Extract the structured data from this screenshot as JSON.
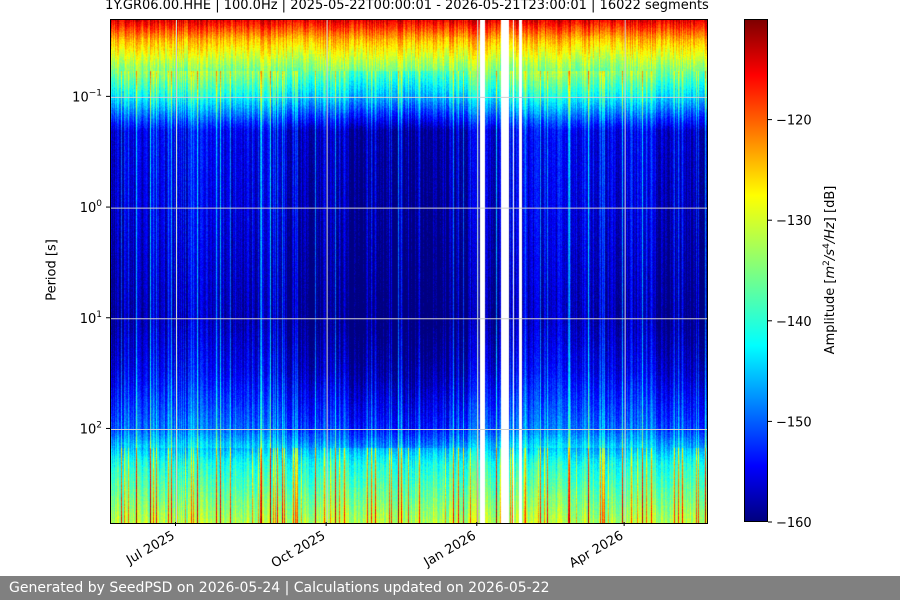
{
  "chart_data": {
    "type": "heatmap",
    "title": "1Y.GR06.00.HHE | 100.0Hz | 2025-05-22T00:00:01 - 2026-05-21T23:00:01 | 16022 segments",
    "ylabel": "Period [s]",
    "yscale": "log",
    "yaxis_inverted": true,
    "ylim": [
      0.02,
      700
    ],
    "y_ticks": [
      {
        "value": 0.1,
        "base": "10",
        "exp": "−1"
      },
      {
        "value": 1,
        "base": "10",
        "exp": "0"
      },
      {
        "value": 10,
        "base": "10",
        "exp": "1"
      },
      {
        "value": 100,
        "base": "10",
        "exp": "2"
      }
    ],
    "xlim": [
      "2025-05-22",
      "2026-05-21"
    ],
    "x_ticks": [
      {
        "date": "2025-07-01",
        "label": "Jul 2025"
      },
      {
        "date": "2025-10-01",
        "label": "Oct 2025"
      },
      {
        "date": "2026-01-01",
        "label": "Jan 2026"
      },
      {
        "date": "2026-04-01",
        "label": "Apr 2026"
      }
    ],
    "grid": true,
    "data_gaps": [
      [
        "2026-01-02",
        "2026-01-05"
      ],
      [
        "2026-01-15",
        "2026-01-20"
      ],
      [
        "2026-01-22",
        "2026-01-23"
      ],
      [
        "2026-01-26",
        "2026-01-28"
      ]
    ],
    "amplitude_profile_db": [
      {
        "period": 0.02,
        "amp": -115
      },
      {
        "period": 0.03,
        "amp": -125
      },
      {
        "period": 0.05,
        "amp": -133
      },
      {
        "period": 0.1,
        "amp": -143
      },
      {
        "period": 0.2,
        "amp": -156
      },
      {
        "period": 1,
        "amp": -157
      },
      {
        "period": 10,
        "amp": -159
      },
      {
        "period": 30,
        "amp": -156
      },
      {
        "period": 100,
        "amp": -150
      },
      {
        "period": 200,
        "amp": -140
      },
      {
        "period": 700,
        "amp": -132
      }
    ],
    "colorbar": {
      "label_prefix": "Amplitude [",
      "label_mid_a": "m",
      "label_mid_b": "/s",
      "label_mid_c": "/Hz",
      "label_suffix": "] [dB]",
      "sup_a": "2",
      "sup_b": "4",
      "colormap": "jet",
      "vmin": -160,
      "vmax": -110,
      "ticks": [
        {
          "value": -120,
          "label": "−120"
        },
        {
          "value": -130,
          "label": "−130"
        },
        {
          "value": -140,
          "label": "−140"
        },
        {
          "value": -150,
          "label": "−150"
        },
        {
          "value": -160,
          "label": "−160"
        }
      ]
    }
  },
  "footer": {
    "text": "Generated by SeedPSD on 2026-05-24 | Calculations updated on 2026-05-22"
  }
}
